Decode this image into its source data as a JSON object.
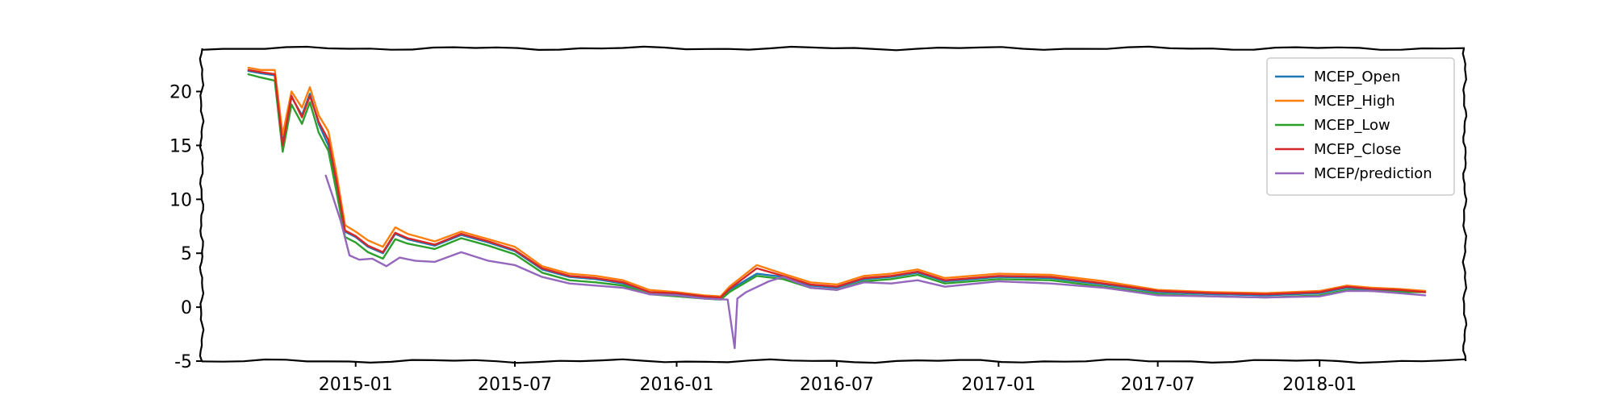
{
  "chart_data": {
    "type": "line",
    "title": "",
    "xlabel": "",
    "ylabel": "",
    "ylim": [
      -5,
      24
    ],
    "xlim": [
      "2014-07-10",
      "2018-06-15"
    ],
    "x_ticks": [
      "2015-01",
      "2015-07",
      "2016-01",
      "2016-07",
      "2017-01",
      "2017-07",
      "2018-01"
    ],
    "y_ticks": [
      -5,
      0,
      5,
      10,
      15,
      20
    ],
    "grid": false,
    "legend_position": "top-right",
    "series": [
      {
        "name": "MCEP_Open",
        "color": "#1f77b4",
        "points": [
          [
            "2014-09-01",
            21.9
          ],
          [
            "2014-09-15",
            21.7
          ],
          [
            "2014-10-01",
            21.5
          ],
          [
            "2014-10-10",
            15.2
          ],
          [
            "2014-10-20",
            19.5
          ],
          [
            "2014-11-01",
            17.8
          ],
          [
            "2014-11-10",
            19.8
          ],
          [
            "2014-11-20",
            17.0
          ],
          [
            "2014-12-01",
            15.0
          ],
          [
            "2014-12-10",
            11.5
          ],
          [
            "2014-12-20",
            7.0
          ],
          [
            "2015-01-01",
            6.5
          ],
          [
            "2015-01-15",
            5.6
          ],
          [
            "2015-02-01",
            5.0
          ],
          [
            "2015-02-15",
            6.8
          ],
          [
            "2015-03-01",
            6.3
          ],
          [
            "2015-04-01",
            5.7
          ],
          [
            "2015-05-01",
            6.7
          ],
          [
            "2015-06-01",
            6.0
          ],
          [
            "2015-07-01",
            5.2
          ],
          [
            "2015-08-01",
            3.5
          ],
          [
            "2015-09-01",
            2.8
          ],
          [
            "2015-10-01",
            2.6
          ],
          [
            "2015-11-01",
            2.2
          ],
          [
            "2015-12-01",
            1.4
          ],
          [
            "2016-01-01",
            1.2
          ],
          [
            "2016-02-01",
            0.9
          ],
          [
            "2016-02-20",
            0.8
          ],
          [
            "2016-03-01",
            1.6
          ],
          [
            "2016-04-01",
            3.1
          ],
          [
            "2016-05-01",
            2.8
          ],
          [
            "2016-06-01",
            2.0
          ],
          [
            "2016-07-01",
            1.8
          ],
          [
            "2016-08-01",
            2.6
          ],
          [
            "2016-09-01",
            2.8
          ],
          [
            "2016-10-01",
            3.2
          ],
          [
            "2016-11-01",
            2.4
          ],
          [
            "2017-01-01",
            2.8
          ],
          [
            "2017-03-01",
            2.7
          ],
          [
            "2017-05-01",
            2.1
          ],
          [
            "2017-07-01",
            1.4
          ],
          [
            "2017-09-01",
            1.2
          ],
          [
            "2017-11-01",
            1.1
          ],
          [
            "2018-01-01",
            1.3
          ],
          [
            "2018-02-01",
            1.8
          ],
          [
            "2018-03-01",
            1.6
          ],
          [
            "2018-04-01",
            1.5
          ],
          [
            "2018-05-01",
            1.4
          ]
        ]
      },
      {
        "name": "MCEP_High",
        "color": "#ff7f0e",
        "points": [
          [
            "2014-09-01",
            22.2
          ],
          [
            "2014-09-15",
            22.0
          ],
          [
            "2014-10-01",
            22.0
          ],
          [
            "2014-10-10",
            16.0
          ],
          [
            "2014-10-20",
            20.0
          ],
          [
            "2014-11-01",
            18.5
          ],
          [
            "2014-11-10",
            20.4
          ],
          [
            "2014-11-20",
            17.8
          ],
          [
            "2014-12-01",
            16.3
          ],
          [
            "2014-12-10",
            12.5
          ],
          [
            "2014-12-20",
            7.6
          ],
          [
            "2015-01-01",
            7.0
          ],
          [
            "2015-01-15",
            6.2
          ],
          [
            "2015-02-01",
            5.6
          ],
          [
            "2015-02-15",
            7.4
          ],
          [
            "2015-03-01",
            6.8
          ],
          [
            "2015-04-01",
            6.1
          ],
          [
            "2015-05-01",
            7.0
          ],
          [
            "2015-06-01",
            6.3
          ],
          [
            "2015-07-01",
            5.6
          ],
          [
            "2015-08-01",
            3.8
          ],
          [
            "2015-09-01",
            3.1
          ],
          [
            "2015-10-01",
            2.9
          ],
          [
            "2015-11-01",
            2.5
          ],
          [
            "2015-12-01",
            1.6
          ],
          [
            "2016-01-01",
            1.4
          ],
          [
            "2016-02-01",
            1.1
          ],
          [
            "2016-02-20",
            1.0
          ],
          [
            "2016-03-01",
            1.9
          ],
          [
            "2016-04-01",
            3.9
          ],
          [
            "2016-05-01",
            3.1
          ],
          [
            "2016-06-01",
            2.3
          ],
          [
            "2016-07-01",
            2.1
          ],
          [
            "2016-08-01",
            2.9
          ],
          [
            "2016-09-01",
            3.1
          ],
          [
            "2016-10-01",
            3.5
          ],
          [
            "2016-11-01",
            2.7
          ],
          [
            "2017-01-01",
            3.1
          ],
          [
            "2017-03-01",
            3.0
          ],
          [
            "2017-05-01",
            2.4
          ],
          [
            "2017-07-01",
            1.6
          ],
          [
            "2017-09-01",
            1.4
          ],
          [
            "2017-11-01",
            1.3
          ],
          [
            "2018-01-01",
            1.5
          ],
          [
            "2018-02-01",
            2.0
          ],
          [
            "2018-03-01",
            1.8
          ],
          [
            "2018-04-01",
            1.7
          ],
          [
            "2018-05-01",
            1.5
          ]
        ]
      },
      {
        "name": "MCEP_Low",
        "color": "#2ca02c",
        "points": [
          [
            "2014-09-01",
            21.6
          ],
          [
            "2014-09-15",
            21.3
          ],
          [
            "2014-10-01",
            21.0
          ],
          [
            "2014-10-10",
            14.4
          ],
          [
            "2014-10-20",
            18.8
          ],
          [
            "2014-11-01",
            17.0
          ],
          [
            "2014-11-10",
            19.0
          ],
          [
            "2014-11-20",
            16.2
          ],
          [
            "2014-12-01",
            14.5
          ],
          [
            "2014-12-10",
            10.8
          ],
          [
            "2014-12-20",
            6.5
          ],
          [
            "2015-01-01",
            6.0
          ],
          [
            "2015-01-15",
            5.1
          ],
          [
            "2015-02-01",
            4.5
          ],
          [
            "2015-02-15",
            6.3
          ],
          [
            "2015-03-01",
            5.9
          ],
          [
            "2015-04-01",
            5.4
          ],
          [
            "2015-05-01",
            6.4
          ],
          [
            "2015-06-01",
            5.7
          ],
          [
            "2015-07-01",
            4.9
          ],
          [
            "2015-08-01",
            3.2
          ],
          [
            "2015-09-01",
            2.5
          ],
          [
            "2015-10-01",
            2.3
          ],
          [
            "2015-11-01",
            2.0
          ],
          [
            "2015-12-01",
            1.2
          ],
          [
            "2016-01-01",
            1.0
          ],
          [
            "2016-02-01",
            0.8
          ],
          [
            "2016-02-20",
            0.7
          ],
          [
            "2016-03-01",
            1.4
          ],
          [
            "2016-04-01",
            2.9
          ],
          [
            "2016-05-01",
            2.6
          ],
          [
            "2016-06-01",
            1.8
          ],
          [
            "2016-07-01",
            1.6
          ],
          [
            "2016-08-01",
            2.4
          ],
          [
            "2016-09-01",
            2.6
          ],
          [
            "2016-10-01",
            3.0
          ],
          [
            "2016-11-01",
            2.2
          ],
          [
            "2017-01-01",
            2.6
          ],
          [
            "2017-03-01",
            2.5
          ],
          [
            "2017-05-01",
            1.9
          ],
          [
            "2017-07-01",
            1.2
          ],
          [
            "2017-09-01",
            1.0
          ],
          [
            "2017-11-01",
            0.9
          ],
          [
            "2018-01-01",
            1.1
          ],
          [
            "2018-02-01",
            1.6
          ],
          [
            "2018-03-01",
            1.5
          ],
          [
            "2018-04-01",
            1.4
          ],
          [
            "2018-05-01",
            1.4
          ]
        ]
      },
      {
        "name": "MCEP_Close",
        "color": "#d62728",
        "points": [
          [
            "2014-09-01",
            22.0
          ],
          [
            "2014-09-15",
            21.8
          ],
          [
            "2014-10-01",
            21.6
          ],
          [
            "2014-10-10",
            15.0
          ],
          [
            "2014-10-20",
            19.6
          ],
          [
            "2014-11-01",
            17.6
          ],
          [
            "2014-11-10",
            19.6
          ],
          [
            "2014-11-20",
            17.2
          ],
          [
            "2014-12-01",
            15.5
          ],
          [
            "2014-12-10",
            11.8
          ],
          [
            "2014-12-20",
            7.1
          ],
          [
            "2015-01-01",
            6.6
          ],
          [
            "2015-01-15",
            5.7
          ],
          [
            "2015-02-01",
            5.1
          ],
          [
            "2015-02-15",
            6.9
          ],
          [
            "2015-03-01",
            6.4
          ],
          [
            "2015-04-01",
            5.8
          ],
          [
            "2015-05-01",
            6.8
          ],
          [
            "2015-06-01",
            6.1
          ],
          [
            "2015-07-01",
            5.3
          ],
          [
            "2015-08-01",
            3.6
          ],
          [
            "2015-09-01",
            2.9
          ],
          [
            "2015-10-01",
            2.7
          ],
          [
            "2015-11-01",
            2.3
          ],
          [
            "2015-12-01",
            1.4
          ],
          [
            "2016-01-01",
            1.3
          ],
          [
            "2016-02-01",
            1.0
          ],
          [
            "2016-02-20",
            0.9
          ],
          [
            "2016-03-01",
            1.7
          ],
          [
            "2016-04-01",
            3.6
          ],
          [
            "2016-05-01",
            2.9
          ],
          [
            "2016-06-01",
            2.1
          ],
          [
            "2016-07-01",
            1.9
          ],
          [
            "2016-08-01",
            2.7
          ],
          [
            "2016-09-01",
            2.9
          ],
          [
            "2016-10-01",
            3.3
          ],
          [
            "2016-11-01",
            2.5
          ],
          [
            "2017-01-01",
            2.9
          ],
          [
            "2017-03-01",
            2.8
          ],
          [
            "2017-05-01",
            2.2
          ],
          [
            "2017-07-01",
            1.5
          ],
          [
            "2017-09-01",
            1.3
          ],
          [
            "2017-11-01",
            1.2
          ],
          [
            "2018-01-01",
            1.4
          ],
          [
            "2018-02-01",
            1.9
          ],
          [
            "2018-03-01",
            1.7
          ],
          [
            "2018-04-01",
            1.6
          ],
          [
            "2018-05-01",
            1.4
          ]
        ]
      },
      {
        "name": "MCEP/prediction",
        "color": "#9467bd",
        "points": [
          [
            "2014-11-28",
            12.2
          ],
          [
            "2014-12-05",
            10.5
          ],
          [
            "2014-12-15",
            8.0
          ],
          [
            "2014-12-25",
            4.8
          ],
          [
            "2015-01-05",
            4.4
          ],
          [
            "2015-01-20",
            4.5
          ],
          [
            "2015-02-05",
            3.8
          ],
          [
            "2015-02-20",
            4.6
          ],
          [
            "2015-03-10",
            4.3
          ],
          [
            "2015-04-01",
            4.2
          ],
          [
            "2015-05-01",
            5.1
          ],
          [
            "2015-06-01",
            4.3
          ],
          [
            "2015-07-01",
            3.9
          ],
          [
            "2015-08-01",
            2.8
          ],
          [
            "2015-09-01",
            2.2
          ],
          [
            "2015-10-01",
            2.0
          ],
          [
            "2015-11-01",
            1.8
          ],
          [
            "2015-12-01",
            1.2
          ],
          [
            "2016-01-01",
            1.1
          ],
          [
            "2016-02-01",
            0.8
          ],
          [
            "2016-02-28",
            0.7
          ],
          [
            "2016-03-07",
            -3.8
          ],
          [
            "2016-03-10",
            0.8
          ],
          [
            "2016-03-20",
            1.4
          ],
          [
            "2016-04-15",
            2.4
          ],
          [
            "2016-05-01",
            2.8
          ],
          [
            "2016-06-01",
            1.8
          ],
          [
            "2016-07-01",
            1.6
          ],
          [
            "2016-08-01",
            2.3
          ],
          [
            "2016-09-01",
            2.2
          ],
          [
            "2016-10-01",
            2.5
          ],
          [
            "2016-11-01",
            1.9
          ],
          [
            "2017-01-01",
            2.4
          ],
          [
            "2017-03-01",
            2.2
          ],
          [
            "2017-05-01",
            1.8
          ],
          [
            "2017-07-01",
            1.1
          ],
          [
            "2017-09-01",
            1.0
          ],
          [
            "2017-11-01",
            0.9
          ],
          [
            "2018-01-01",
            1.0
          ],
          [
            "2018-02-01",
            1.5
          ],
          [
            "2018-03-01",
            1.5
          ],
          [
            "2018-04-01",
            1.3
          ],
          [
            "2018-05-01",
            1.1
          ]
        ]
      }
    ]
  }
}
